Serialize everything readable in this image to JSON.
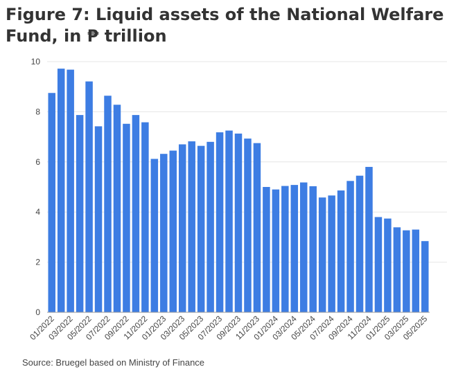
{
  "title": "Figure 7: Liquid assets of the National Welfare Fund, in ₱ trillion",
  "source": "Source: Bruegel based on Ministry of Finance",
  "colors": {
    "bar": "#3d7de3",
    "grid": "#e6e6e6",
    "axis": "#999999"
  },
  "chart_data": {
    "type": "bar",
    "title": "Figure 7: Liquid assets of the National Welfare Fund, in ₱ trillion",
    "xlabel": "",
    "ylabel": "",
    "ylim": [
      0,
      10
    ],
    "yticks": [
      0,
      2,
      4,
      6,
      8,
      10
    ],
    "grid": true,
    "categories": [
      "01/2022",
      "02/2022",
      "03/2022",
      "04/2022",
      "05/2022",
      "06/2022",
      "07/2022",
      "08/2022",
      "09/2022",
      "10/2022",
      "11/2022",
      "12/2022",
      "01/2023",
      "02/2023",
      "03/2023",
      "04/2023",
      "05/2023",
      "06/2023",
      "07/2023",
      "08/2023",
      "09/2023",
      "10/2023",
      "11/2023",
      "12/2023",
      "01/2024",
      "02/2024",
      "03/2024",
      "04/2024",
      "05/2024",
      "06/2024",
      "07/2024",
      "08/2024",
      "09/2024",
      "10/2024",
      "11/2024",
      "12/2024",
      "01/2025",
      "02/2025",
      "03/2025",
      "04/2025",
      "05/2025"
    ],
    "labeled_categories": [
      "01/2022",
      "03/2022",
      "05/2022",
      "07/2022",
      "09/2022",
      "11/2022",
      "01/2023",
      "03/2023",
      "05/2023",
      "07/2023",
      "09/2023",
      "11/2023",
      "01/2024",
      "03/2024",
      "05/2024",
      "07/2024",
      "09/2024",
      "11/2024",
      "01/2025",
      "03/2025",
      "05/2025"
    ],
    "values": [
      8.75,
      9.72,
      9.68,
      7.87,
      9.21,
      7.42,
      8.64,
      8.28,
      7.52,
      7.87,
      7.58,
      6.12,
      6.32,
      6.45,
      6.7,
      6.82,
      6.64,
      6.8,
      7.18,
      7.25,
      7.13,
      6.93,
      6.75,
      5.0,
      4.9,
      5.04,
      5.08,
      5.18,
      5.03,
      4.58,
      4.66,
      4.86,
      5.24,
      5.45,
      5.8,
      3.8,
      3.74,
      3.39,
      3.27,
      3.3,
      2.84
    ]
  }
}
